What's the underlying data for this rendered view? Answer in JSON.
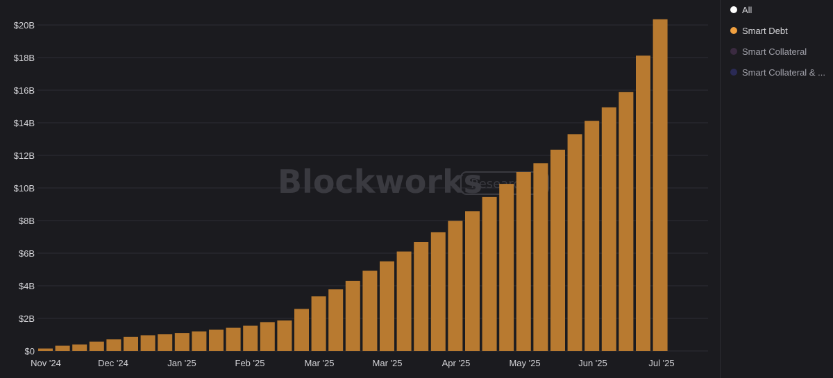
{
  "colors": {
    "background": "#1b1b1f",
    "bar": "#b87a30",
    "grid": "#2e2e34",
    "all_dot": "#ffffff",
    "smart_debt_dot": "#f0a040",
    "smart_collateral_dot": "#3a2a40",
    "smart_collateral_debt_dot": "#2a2a55"
  },
  "watermark": {
    "brand": "Blockworks",
    "badge": "Research"
  },
  "legend": {
    "items": [
      {
        "label": "All",
        "icon": "dot"
      },
      {
        "label": "Smart Debt",
        "icon": "dot"
      },
      {
        "label": "Smart Collateral",
        "icon": "dot"
      },
      {
        "label": "Smart Collateral & ...",
        "icon": "dot"
      }
    ]
  },
  "chart_data": {
    "type": "bar",
    "title": "",
    "xlabel": "",
    "ylabel": "",
    "ylim": [
      0,
      20000000000
    ],
    "grid": true,
    "y_ticks": [
      "$0",
      "$2B",
      "$4B",
      "$6B",
      "$8B",
      "$10B",
      "$12B",
      "$14B",
      "$16B",
      "$18B",
      "$20B"
    ],
    "x_ticks": [
      "Nov '24",
      "Dec '24",
      "Jan '25",
      "Feb '25",
      "Mar '25",
      "Mar '25",
      "Apr '25",
      "May '25",
      "Jun '25",
      "Jul '25"
    ],
    "series": [
      {
        "name": "Smart Debt",
        "values": [
          0.15,
          0.32,
          0.4,
          0.57,
          0.71,
          0.86,
          0.96,
          1.02,
          1.1,
          1.2,
          1.3,
          1.42,
          1.55,
          1.77,
          1.87,
          2.58,
          3.35,
          3.78,
          4.3,
          4.92,
          5.5,
          6.1,
          6.68,
          7.28,
          7.98,
          8.58,
          9.45,
          10.25,
          10.98,
          11.52,
          12.35,
          13.3,
          14.12,
          14.95,
          15.88,
          18.12,
          20.35
        ]
      }
    ],
    "value_unit": "billions USD"
  }
}
